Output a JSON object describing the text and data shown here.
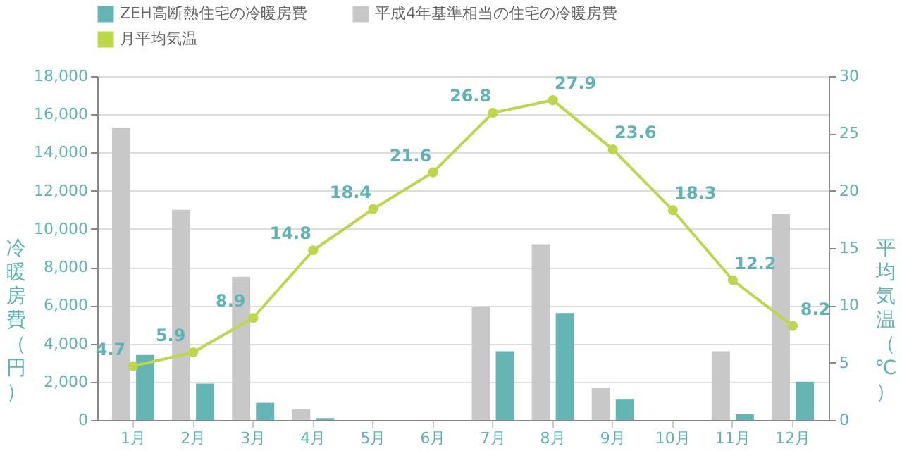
{
  "chart_data": {
    "type": "bar",
    "categories": [
      "1月",
      "2月",
      "3月",
      "4月",
      "5月",
      "6月",
      "7月",
      "8月",
      "9月",
      "10月",
      "11月",
      "12月"
    ],
    "series": [
      {
        "name": "ZEH高断熱住宅の冷暖房費",
        "color": "#66b5b5",
        "values": [
          3400,
          1900,
          900,
          100,
          null,
          null,
          3600,
          5600,
          1100,
          null,
          300,
          2000
        ]
      },
      {
        "name": "平成4年基準相当の住宅の冷暖房費",
        "color": "#c8c8c8",
        "values": [
          15300,
          11000,
          7500,
          550,
          null,
          null,
          5900,
          9200,
          1700,
          null,
          3600,
          10800
        ]
      },
      {
        "name": "月平均気温",
        "color": "#bcd74a",
        "type": "line",
        "axis": "y2",
        "marker": "circle",
        "data_labels": true,
        "values": [
          4.7,
          5.9,
          8.9,
          14.8,
          18.4,
          21.6,
          26.8,
          27.9,
          23.6,
          18.3,
          12.2,
          8.2
        ]
      }
    ],
    "ylabel": "冷暖房費（円）",
    "y2label": "平均気温（℃）",
    "ylim": [
      0,
      18000
    ],
    "yticks": [
      0,
      {
        "value": 2000,
        "label": "2,000"
      },
      {
        "value": 4000,
        "label": "4,000"
      },
      {
        "value": 6000,
        "label": "6,000"
      },
      {
        "value": 8000,
        "label": "8,000"
      },
      {
        "value": 10000,
        "label": "10,000"
      },
      {
        "value": 12000,
        "label": "12,000"
      },
      {
        "value": 14000,
        "label": "14,000"
      },
      {
        "value": 16000,
        "label": "16,000"
      },
      {
        "value": 18000,
        "label": "18,000"
      }
    ],
    "y2lim": [
      0,
      30
    ],
    "y2ticks": [
      0,
      5,
      10,
      15,
      20,
      25,
      30
    ],
    "grid": "y",
    "legend": "top"
  }
}
